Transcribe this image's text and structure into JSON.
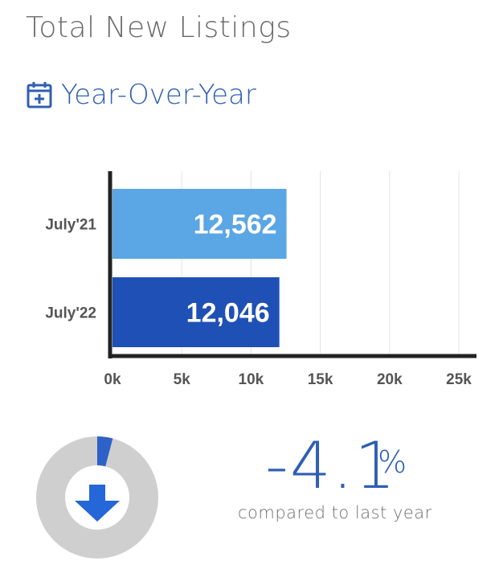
{
  "header": {
    "title": "Total New Listings",
    "subtitle": "Year-Over-Year",
    "subtitle_icon": "calendar-plus-icon"
  },
  "colors": {
    "bar_light": "#5ba6e4",
    "bar_dark": "#1f50b5",
    "accent": "#2f5fb3",
    "donut_bg": "#cfcfcf",
    "donut_change": "#2f62c8"
  },
  "chart_data": {
    "type": "bar",
    "orientation": "horizontal",
    "categories": [
      "July'21",
      "July'22"
    ],
    "values": [
      12562,
      12046
    ],
    "value_labels": [
      "12,562",
      "12,046"
    ],
    "xticks": [
      "0k",
      "5k",
      "10k",
      "15k",
      "20k",
      "25k"
    ],
    "xlim": [
      0,
      25000
    ],
    "grid": true
  },
  "summary": {
    "change_value": "-4.1",
    "change_unit": "%",
    "change_fraction": 0.041,
    "compare_text": "compared to last year",
    "direction_icon": "arrow-down-icon"
  }
}
